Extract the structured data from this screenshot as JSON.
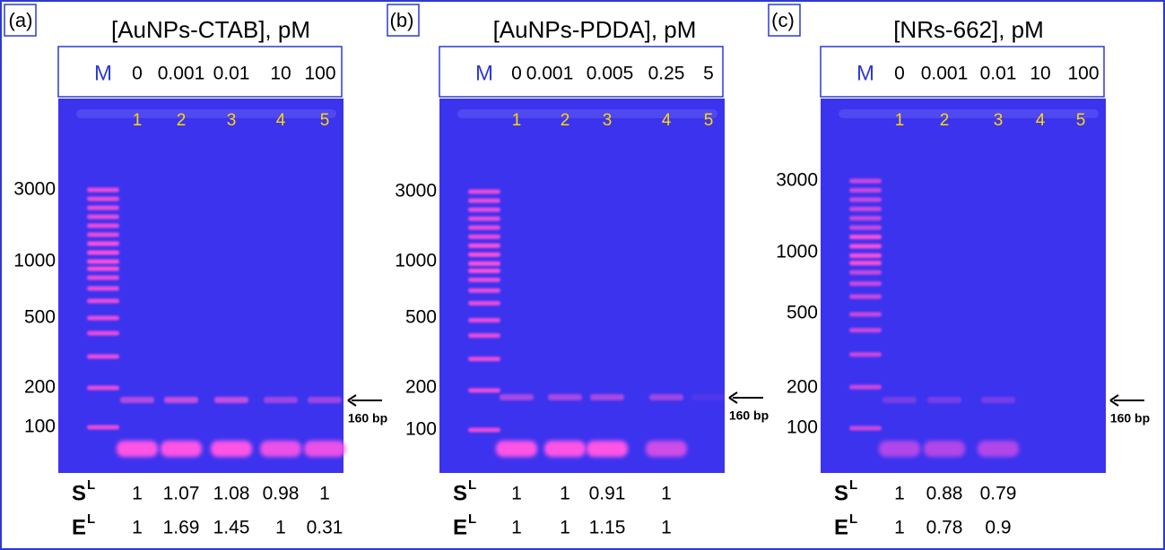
{
  "panels": [
    {
      "label": "(a)",
      "title": "[AuNPs-CTAB], pM",
      "marker": "M",
      "concentrations": [
        "0",
        "0.001",
        "0.01",
        "10",
        "100"
      ],
      "lanes": [
        "1",
        "2",
        "3",
        "4",
        "5"
      ],
      "ladder": [
        "3000",
        "1000",
        "500",
        "200",
        "100"
      ],
      "annotation": "160 bp",
      "rows": [
        {
          "label": "S",
          "sup": "L",
          "values": [
            "1",
            "1.07",
            "1.08",
            "0.98",
            "1"
          ]
        },
        {
          "label": "E",
          "sup": "L",
          "values": [
            "1",
            "1.69",
            "1.45",
            "1",
            "0.31"
          ]
        }
      ]
    },
    {
      "label": "(b)",
      "title": "[AuNPs-PDDA], pM",
      "marker": "M",
      "concentrations": [
        "0",
        "0.001",
        "0.005",
        "0.25",
        "5"
      ],
      "lanes": [
        "1",
        "2",
        "3",
        "4",
        "5"
      ],
      "ladder": [
        "3000",
        "1000",
        "500",
        "200",
        "100"
      ],
      "annotation": "160 bp",
      "rows": [
        {
          "label": "S",
          "sup": "L",
          "values": [
            "1",
            "1",
            "0.91",
            "1"
          ]
        },
        {
          "label": "E",
          "sup": "L",
          "values": [
            "1",
            "1",
            "1.15",
            "1"
          ]
        }
      ]
    },
    {
      "label": "(c)",
      "title": "[NRs-662], pM",
      "marker": "M",
      "concentrations": [
        "0",
        "0.001",
        "0.01",
        "10",
        "100"
      ],
      "lanes": [
        "1",
        "2",
        "3",
        "4",
        "5"
      ],
      "ladder": [
        "3000",
        "1000",
        "500",
        "200",
        "100"
      ],
      "annotation": "160 bp",
      "rows": [
        {
          "label": "S",
          "sup": "L",
          "values": [
            "1",
            "0.88",
            "0.79"
          ]
        },
        {
          "label": "E",
          "sup": "L",
          "values": [
            "1",
            "0.78",
            "0.9"
          ]
        }
      ]
    }
  ]
}
